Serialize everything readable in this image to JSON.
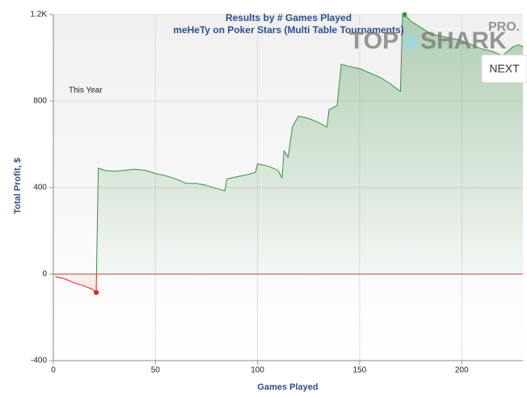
{
  "chart_data": {
    "type": "area",
    "title": "Results by # Games Played",
    "subtitle": "meHeTy on Poker Stars (Multi Table Tournaments)",
    "annotation": "This Year",
    "xlabel": "Games Played",
    "ylabel": "Total Profit, $",
    "logo": [
      "TOP",
      "SHARK",
      "PRO."
    ],
    "button": "NEXT",
    "xlim": [
      0,
      230
    ],
    "ylim": [
      -400,
      1200
    ],
    "xticks": [
      0,
      50,
      100,
      150,
      200
    ],
    "yticks": [
      -400,
      0,
      400,
      800,
      {
        "value": 1200,
        "label": "1.2K"
      }
    ],
    "grid": true,
    "color": "#3a8f45",
    "negative_color": "#e02020",
    "x": [
      1,
      2,
      5,
      10,
      15,
      19,
      21,
      22,
      25,
      30,
      35,
      40,
      45,
      50,
      55,
      60,
      65,
      70,
      75,
      80,
      84,
      85,
      90,
      95,
      99,
      100,
      105,
      110,
      112,
      113,
      115,
      117,
      120,
      125,
      130,
      134,
      135,
      139,
      141,
      145,
      150,
      155,
      160,
      165,
      170,
      171,
      172,
      175,
      180,
      185,
      190,
      195,
      200,
      205,
      210,
      215,
      220,
      225,
      228,
      230
    ],
    "values": [
      -10,
      -15,
      -20,
      -40,
      -55,
      -70,
      -85,
      490,
      480,
      475,
      480,
      485,
      480,
      465,
      455,
      440,
      420,
      420,
      410,
      395,
      385,
      440,
      450,
      460,
      470,
      510,
      500,
      480,
      445,
      570,
      540,
      680,
      730,
      720,
      700,
      680,
      760,
      780,
      970,
      960,
      950,
      930,
      910,
      880,
      845,
      1195,
      1200,
      1170,
      1140,
      1110,
      1100,
      1090,
      1080,
      1060,
      1040,
      1030,
      1010,
      1050,
      1060,
      1050
    ]
  }
}
